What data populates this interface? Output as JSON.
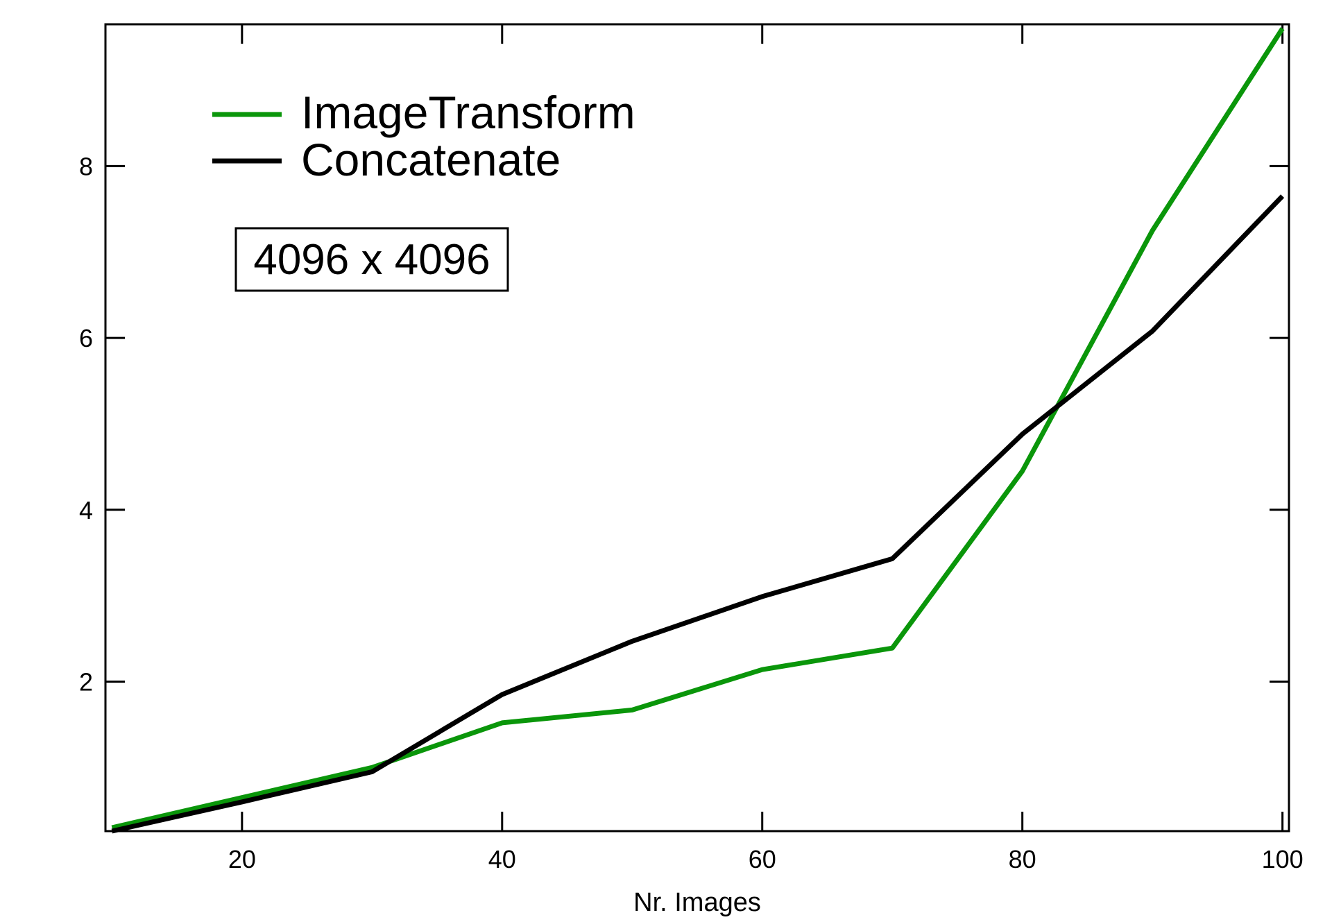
{
  "chart_data": {
    "type": "line",
    "title": "",
    "xlabel": "Nr. Images",
    "ylabel": "",
    "xlim": [
      9.5,
      100.5
    ],
    "ylim": [
      0.26,
      9.65
    ],
    "x_ticks": [
      20,
      40,
      60,
      80,
      100
    ],
    "y_ticks": [
      2,
      4,
      6,
      8
    ],
    "grid": false,
    "legend_position": "top-left",
    "x": [
      10,
      20,
      30,
      40,
      50,
      60,
      70,
      80,
      90,
      100
    ],
    "series": [
      {
        "name": "ImageTransform",
        "color": "#0a960a",
        "values": [
          0.3,
          0.65,
          1.0,
          1.52,
          1.67,
          2.14,
          2.39,
          4.45,
          7.25,
          9.6
        ]
      },
      {
        "name": "Concatenate",
        "color": "#000000",
        "values": [
          0.26,
          0.6,
          0.95,
          1.85,
          2.47,
          2.99,
          3.43,
          4.88,
          6.08,
          7.65
        ]
      }
    ],
    "annotations": [
      "4096 x 4096"
    ]
  }
}
